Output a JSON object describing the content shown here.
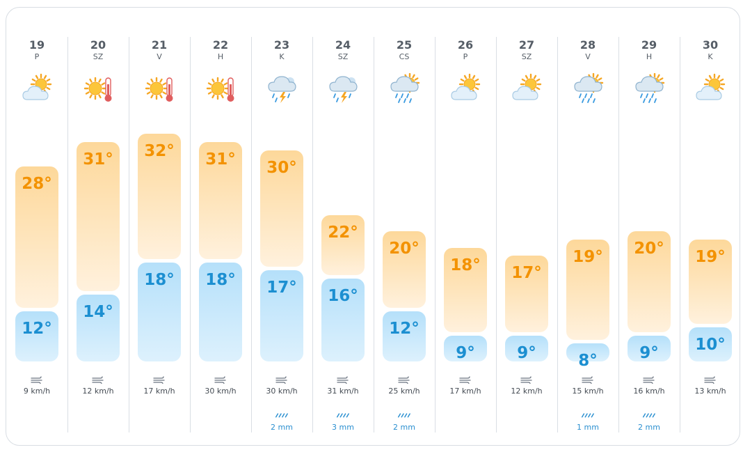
{
  "forecast": {
    "days": [
      {
        "date": "19",
        "dow": "P",
        "icon": "partly-cloudy-icon",
        "high": 28,
        "low": 12,
        "high_label": "28°",
        "low_label": "12°",
        "wind": "9 km/h",
        "rain": ""
      },
      {
        "date": "20",
        "dow": "SZ",
        "icon": "sun-thermometer-icon",
        "high": 31,
        "low": 14,
        "high_label": "31°",
        "low_label": "14°",
        "wind": "12 km/h",
        "rain": ""
      },
      {
        "date": "21",
        "dow": "V",
        "icon": "sun-thermometer-icon",
        "high": 32,
        "low": 18,
        "high_label": "32°",
        "low_label": "18°",
        "wind": "17 km/h",
        "rain": ""
      },
      {
        "date": "22",
        "dow": "H",
        "icon": "sun-thermometer-icon",
        "high": 31,
        "low": 18,
        "high_label": "31°",
        "low_label": "18°",
        "wind": "30 km/h",
        "rain": ""
      },
      {
        "date": "23",
        "dow": "K",
        "icon": "thunderstorm-icon",
        "high": 30,
        "low": 17,
        "high_label": "30°",
        "low_label": "17°",
        "wind": "30 km/h",
        "rain": "2 mm"
      },
      {
        "date": "24",
        "dow": "SZ",
        "icon": "thunderstorm-icon",
        "high": 22,
        "low": 16,
        "high_label": "22°",
        "low_label": "16°",
        "wind": "31 km/h",
        "rain": "3 mm"
      },
      {
        "date": "25",
        "dow": "CS",
        "icon": "sun-rain-icon",
        "high": 20,
        "low": 12,
        "high_label": "20°",
        "low_label": "12°",
        "wind": "25 km/h",
        "rain": "2 mm"
      },
      {
        "date": "26",
        "dow": "P",
        "icon": "partly-cloudy-icon",
        "high": 18,
        "low": 9,
        "high_label": "18°",
        "low_label": "9°",
        "wind": "17 km/h",
        "rain": ""
      },
      {
        "date": "27",
        "dow": "SZ",
        "icon": "partly-cloudy-icon",
        "high": 17,
        "low": 9,
        "high_label": "17°",
        "low_label": "9°",
        "wind": "12 km/h",
        "rain": ""
      },
      {
        "date": "28",
        "dow": "V",
        "icon": "sun-rain-icon",
        "high": 19,
        "low": 8,
        "high_label": "19°",
        "low_label": "8°",
        "wind": "15 km/h",
        "rain": "1 mm"
      },
      {
        "date": "29",
        "dow": "H",
        "icon": "sun-rain-icon",
        "high": 20,
        "low": 9,
        "high_label": "20°",
        "low_label": "9°",
        "wind": "16 km/h",
        "rain": "2 mm"
      },
      {
        "date": "30",
        "dow": "K",
        "icon": "partly-cloudy-icon",
        "high": 19,
        "low": 10,
        "high_label": "19°",
        "low_label": "10°",
        "wind": "13 km/h",
        "rain": ""
      }
    ]
  },
  "colors": {
    "high_text": "#f39200",
    "low_text": "#1c8fd1",
    "rain_text": "#2a8fd0",
    "sun": "#f7b731",
    "cloud": "#cfe6f7"
  }
}
